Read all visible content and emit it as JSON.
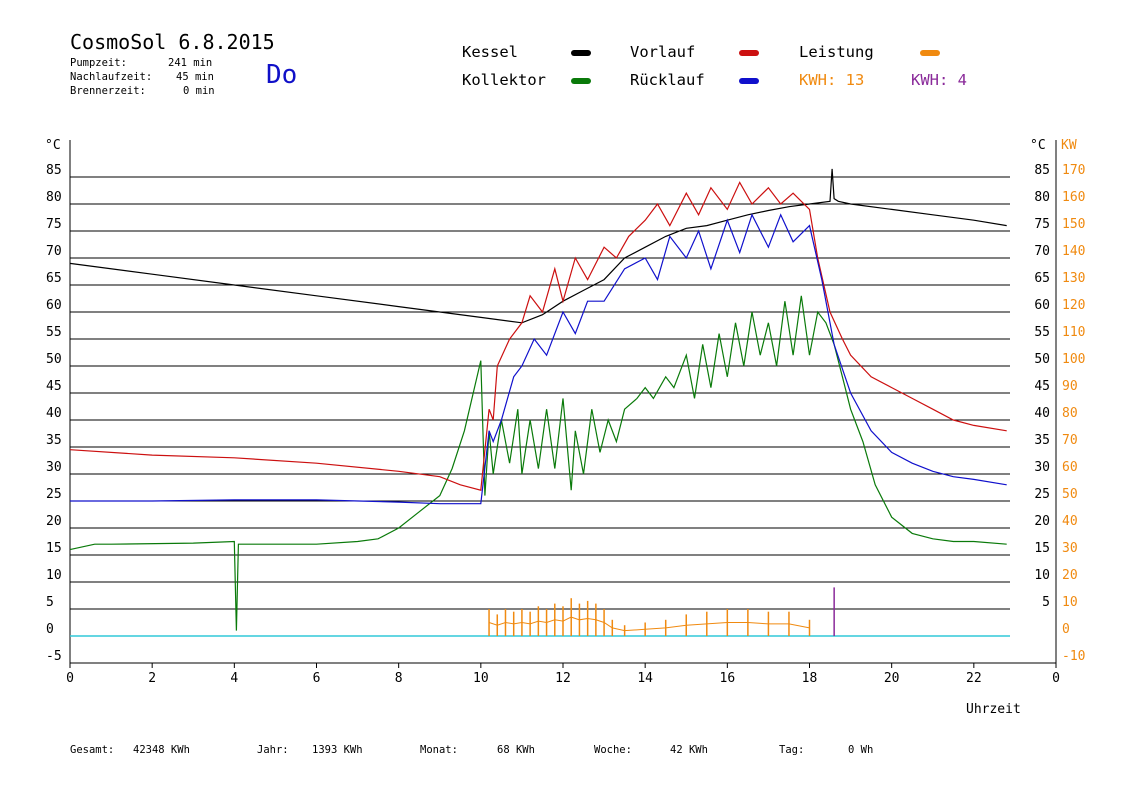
{
  "header": {
    "title": "CosmoSol 6.8.2015",
    "pumpzeit_label": "Pumpzeit:",
    "pumpzeit_value": "241 min",
    "nachlaufzeit_label": "Nachlaufzeit:",
    "nachlaufzeit_value": "45 min",
    "brennerzeit_label": "Brennerzeit:",
    "brennerzeit_value": "0 min",
    "day": "Do"
  },
  "legend": {
    "kessel": "Kessel",
    "kollektor": "Kollektor",
    "vorlauf": "Vorlauf",
    "ruecklauf": "Rücklauf",
    "leistung": "Leistung",
    "kwh1": "KWH: 13",
    "kwh2": "KWH: 4"
  },
  "colors": {
    "kessel": "#000000",
    "kollektor": "#0a7a0a",
    "vorlauf": "#cc1010",
    "ruecklauf": "#1010cc",
    "leistung": "#f08a10",
    "kwh2": "#8a2a9a",
    "baseline": "#30c8d8"
  },
  "footer": {
    "gesamt_label": "Gesamt:",
    "gesamt_value": "42348 KWh",
    "jahr_label": "Jahr:",
    "jahr_value": "1393 KWh",
    "monat_label": "Monat:",
    "monat_value": "68 KWh",
    "woche_label": "Woche:",
    "woche_value": "42 KWh",
    "tag_label": "Tag:",
    "tag_value": "0 Wh"
  },
  "chart_data": {
    "type": "line",
    "xlabel": "Uhrzeit",
    "ylabel_left": "°C",
    "ylabel_right_1": "°C",
    "ylabel_right_2": "KW",
    "xlim": [
      0,
      24
    ],
    "ylim": [
      -5,
      90
    ],
    "ylim_kw": [
      -10,
      180
    ],
    "x_ticks": [
      "0",
      "2",
      "4",
      "6",
      "8",
      "10",
      "12",
      "14",
      "16",
      "18",
      "20",
      "22",
      "0"
    ],
    "y_ticks_left": [
      -5,
      0,
      5,
      10,
      15,
      20,
      25,
      30,
      35,
      40,
      45,
      50,
      55,
      60,
      65,
      70,
      75,
      80,
      85
    ],
    "y_ticks_right": [
      5,
      10,
      15,
      20,
      25,
      30,
      35,
      40,
      45,
      50,
      55,
      60,
      65,
      70,
      75,
      80,
      85
    ],
    "y_ticks_kw": [
      -10,
      0,
      10,
      20,
      30,
      40,
      50,
      60,
      70,
      80,
      90,
      100,
      110,
      120,
      130,
      140,
      150,
      160,
      170
    ],
    "grid": true,
    "series": [
      {
        "name": "Kessel",
        "color": "#000000",
        "x": [
          0,
          2,
          4,
          6,
          8,
          10,
          11,
          11.5,
          12,
          12.5,
          13,
          13.5,
          14,
          14.5,
          15,
          15.5,
          16,
          16.5,
          17,
          17.5,
          18,
          18.5,
          18.55,
          18.6,
          18.7,
          19,
          20,
          21,
          22,
          22.8
        ],
        "y": [
          69,
          67,
          65,
          63,
          61,
          59,
          58,
          59.5,
          62,
          64,
          66,
          70,
          72,
          74,
          75.5,
          76,
          77,
          78,
          78.8,
          79.5,
          80,
          80.5,
          86.5,
          81,
          80.5,
          80,
          79,
          78,
          77,
          76
        ]
      },
      {
        "name": "Kollektor",
        "color": "#0a7a0a",
        "x": [
          0,
          0.6,
          1,
          3,
          4,
          4.05,
          4.1,
          4.2,
          5,
          6,
          7,
          7.5,
          8,
          8.5,
          9,
          9.3,
          9.6,
          10,
          10.1,
          10.2,
          10.3,
          10.5,
          10.7,
          10.9,
          11,
          11.2,
          11.4,
          11.6,
          11.8,
          12,
          12.2,
          12.3,
          12.5,
          12.7,
          12.9,
          13.1,
          13.3,
          13.5,
          13.8,
          14,
          14.2,
          14.5,
          14.7,
          15,
          15.2,
          15.4,
          15.6,
          15.8,
          16,
          16.2,
          16.4,
          16.6,
          16.8,
          17,
          17.2,
          17.4,
          17.6,
          17.8,
          18,
          18.2,
          18.4,
          18.6,
          18.8,
          19,
          19.3,
          19.6,
          20,
          20.5,
          21,
          21.5,
          22,
          22.8
        ],
        "y": [
          16,
          17,
          17,
          17.2,
          17.5,
          1,
          17,
          17,
          17,
          17,
          17.5,
          18,
          20,
          23,
          26,
          31,
          38,
          51,
          26,
          38,
          30,
          40,
          32,
          42,
          30,
          40,
          31,
          42,
          31,
          44,
          27,
          38,
          30,
          42,
          34,
          40,
          36,
          42,
          44,
          46,
          44,
          48,
          46,
          52,
          44,
          54,
          46,
          56,
          48,
          58,
          50,
          60,
          52,
          58,
          50,
          62,
          52,
          63,
          52,
          60,
          58,
          54,
          48,
          42,
          36,
          28,
          22,
          19,
          18,
          17.5,
          17.5,
          17
        ]
      },
      {
        "name": "Vorlauf",
        "color": "#cc1010",
        "x": [
          0,
          2,
          4,
          6,
          8,
          9,
          9.5,
          10,
          10.2,
          10.3,
          10.4,
          10.7,
          11,
          11.2,
          11.5,
          11.8,
          12,
          12.3,
          12.6,
          13,
          13.3,
          13.6,
          14,
          14.3,
          14.6,
          15,
          15.3,
          15.6,
          16,
          16.3,
          16.6,
          17,
          17.3,
          17.6,
          18,
          18.2,
          18.5,
          18.8,
          19,
          19.5,
          20,
          20.5,
          21,
          21.5,
          22,
          22.8
        ],
        "y": [
          34.5,
          33.5,
          33,
          32,
          30.5,
          29.5,
          28,
          27,
          42,
          40,
          50,
          55,
          58,
          63,
          60,
          68,
          62,
          70,
          66,
          72,
          70,
          74,
          77,
          80,
          76,
          82,
          78,
          83,
          79,
          84,
          80,
          83,
          80,
          82,
          79,
          70,
          60,
          55,
          52,
          48,
          46,
          44,
          42,
          40,
          39,
          38
        ]
      },
      {
        "name": "Rücklauf",
        "color": "#1010cc",
        "x": [
          0,
          2,
          4,
          6,
          8,
          9,
          10,
          10.2,
          10.3,
          10.5,
          10.8,
          11,
          11.3,
          11.6,
          12,
          12.3,
          12.6,
          13,
          13.5,
          14,
          14.3,
          14.6,
          15,
          15.3,
          15.6,
          16,
          16.3,
          16.6,
          17,
          17.3,
          17.6,
          18,
          18.3,
          18.6,
          19,
          19.5,
          20,
          20.5,
          21,
          21.5,
          22,
          22.8
        ],
        "y": [
          25,
          25,
          25.2,
          25.2,
          24.8,
          24.5,
          24.5,
          38,
          36,
          40,
          48,
          50,
          55,
          52,
          60,
          56,
          62,
          62,
          68,
          70,
          66,
          74,
          70,
          75,
          68,
          77,
          71,
          78,
          72,
          78,
          73,
          76,
          66,
          54,
          45,
          38,
          34,
          32,
          30.5,
          29.5,
          29,
          28
        ]
      }
    ],
    "leistung": {
      "name": "Leistung",
      "color": "#f08a10",
      "unit": "KW",
      "x": [
        10.2,
        10.4,
        10.6,
        10.8,
        11,
        11.2,
        11.4,
        11.6,
        11.8,
        12,
        12.2,
        12.4,
        12.6,
        12.8,
        13,
        13.2,
        13.5,
        14,
        14.5,
        15,
        15.5,
        16,
        16.5,
        17,
        17.5,
        18
      ],
      "y": [
        10,
        8,
        10,
        9,
        10,
        9,
        11,
        10,
        12,
        11,
        14,
        12,
        13,
        12,
        10,
        6,
        4,
        5,
        6,
        8,
        9,
        10,
        10,
        9,
        9,
        6
      ]
    },
    "kwh2_peak": {
      "x": 18.6,
      "y": 9
    }
  }
}
